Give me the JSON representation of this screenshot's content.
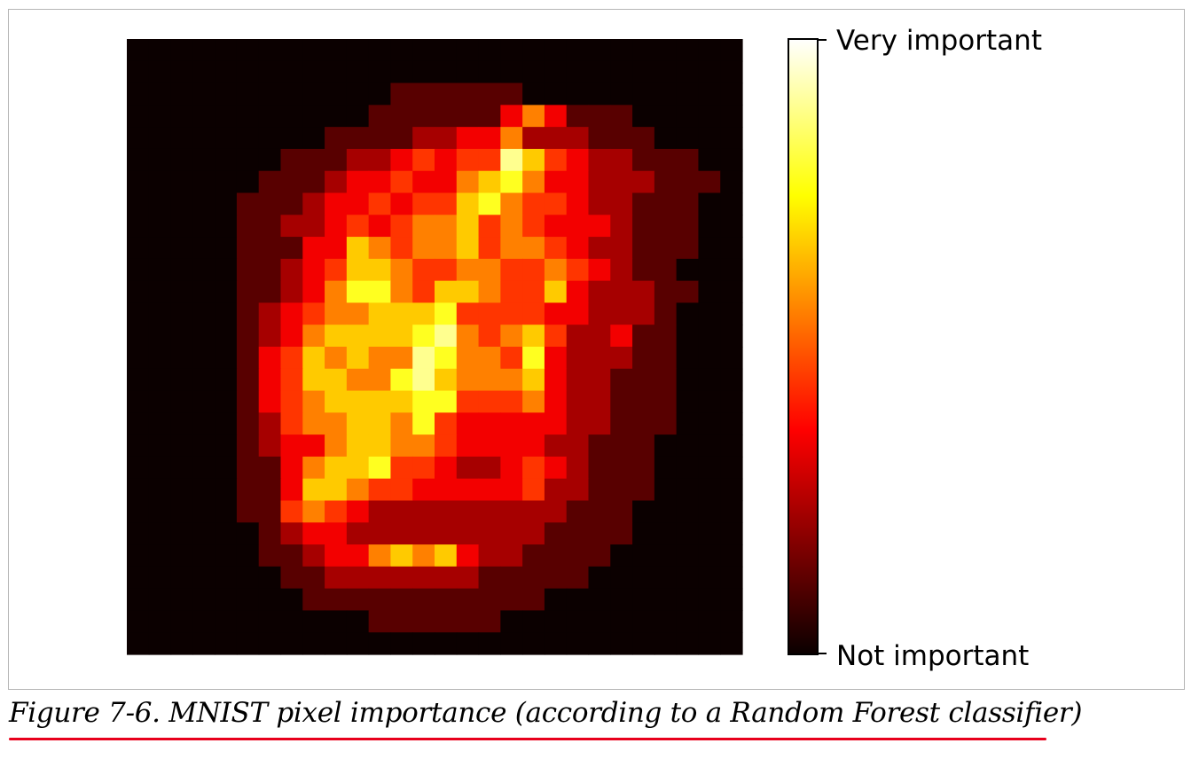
{
  "caption": {
    "text": "Figure 7-6. MNIST pixel importance (according to a Random Forest classifier)",
    "underline_color": "#e8001c"
  },
  "chart_data": {
    "type": "heatmap",
    "title": "",
    "xlabel": "",
    "ylabel": "",
    "colormap": "hot",
    "rows": 28,
    "cols": 28,
    "axes_visible": false,
    "grid": false,
    "value_range": [
      0,
      9
    ],
    "colorbar": {
      "position": "right",
      "max_label": "Very important",
      "min_label": "Not important"
    },
    "values": [
      [
        0,
        0,
        0,
        0,
        0,
        0,
        0,
        0,
        0,
        0,
        0,
        0,
        0,
        0,
        0,
        0,
        0,
        0,
        0,
        0,
        0,
        0,
        0,
        0,
        0,
        0,
        0,
        0
      ],
      [
        0,
        0,
        0,
        0,
        0,
        0,
        0,
        0,
        0,
        0,
        0,
        0,
        0,
        0,
        0,
        0,
        0,
        0,
        0,
        0,
        0,
        0,
        0,
        0,
        0,
        0,
        0,
        0
      ],
      [
        0,
        0,
        0,
        0,
        0,
        0,
        0,
        0,
        0,
        0,
        0,
        0,
        1,
        1,
        1,
        1,
        1,
        1,
        0,
        0,
        0,
        0,
        0,
        0,
        0,
        0,
        0,
        0
      ],
      [
        0,
        0,
        0,
        0,
        0,
        0,
        0,
        0,
        0,
        0,
        0,
        1,
        1,
        1,
        1,
        1,
        1,
        3,
        5,
        3,
        1,
        1,
        1,
        0,
        0,
        0,
        0,
        0
      ],
      [
        0,
        0,
        0,
        0,
        0,
        0,
        0,
        0,
        0,
        1,
        1,
        1,
        1,
        2,
        2,
        3,
        3,
        5,
        2,
        2,
        2,
        1,
        1,
        1,
        0,
        0,
        0,
        0
      ],
      [
        0,
        0,
        0,
        0,
        0,
        0,
        0,
        1,
        1,
        1,
        2,
        2,
        3,
        4,
        3,
        4,
        4,
        8,
        6,
        4,
        3,
        2,
        2,
        1,
        1,
        1,
        0,
        0
      ],
      [
        0,
        0,
        0,
        0,
        0,
        0,
        1,
        1,
        1,
        2,
        3,
        3,
        4,
        3,
        3,
        5,
        6,
        7,
        5,
        3,
        3,
        2,
        2,
        2,
        1,
        1,
        1,
        0
      ],
      [
        0,
        0,
        0,
        0,
        0,
        1,
        1,
        1,
        2,
        3,
        3,
        4,
        3,
        4,
        4,
        6,
        7,
        5,
        4,
        4,
        3,
        2,
        2,
        1,
        1,
        1,
        0,
        0
      ],
      [
        0,
        0,
        0,
        0,
        0,
        1,
        1,
        2,
        2,
        3,
        4,
        3,
        4,
        5,
        5,
        6,
        4,
        5,
        4,
        3,
        3,
        3,
        2,
        1,
        1,
        1,
        0,
        0
      ],
      [
        0,
        0,
        0,
        0,
        0,
        1,
        1,
        1,
        3,
        3,
        6,
        5,
        4,
        5,
        5,
        6,
        4,
        5,
        5,
        4,
        3,
        2,
        2,
        1,
        1,
        1,
        0,
        0
      ],
      [
        0,
        0,
        0,
        0,
        0,
        1,
        1,
        2,
        3,
        4,
        6,
        6,
        5,
        4,
        4,
        5,
        5,
        4,
        4,
        5,
        4,
        3,
        2,
        1,
        1,
        0,
        0,
        0
      ],
      [
        0,
        0,
        0,
        0,
        0,
        1,
        1,
        2,
        3,
        5,
        7,
        7,
        5,
        4,
        6,
        6,
        5,
        4,
        4,
        6,
        3,
        2,
        2,
        2,
        1,
        1,
        0,
        0
      ],
      [
        0,
        0,
        0,
        0,
        0,
        1,
        2,
        3,
        4,
        5,
        5,
        6,
        6,
        6,
        7,
        4,
        4,
        4,
        4,
        3,
        3,
        2,
        2,
        2,
        1,
        0,
        0,
        0
      ],
      [
        0,
        0,
        0,
        0,
        0,
        1,
        2,
        3,
        5,
        6,
        6,
        6,
        6,
        7,
        8,
        5,
        4,
        5,
        6,
        4,
        2,
        2,
        3,
        1,
        1,
        0,
        0,
        0
      ],
      [
        0,
        0,
        0,
        0,
        0,
        1,
        3,
        4,
        6,
        5,
        6,
        5,
        5,
        8,
        7,
        5,
        5,
        4,
        7,
        3,
        2,
        2,
        2,
        1,
        1,
        0,
        0,
        0
      ],
      [
        0,
        0,
        0,
        0,
        0,
        1,
        3,
        4,
        6,
        6,
        5,
        5,
        7,
        8,
        6,
        5,
        5,
        5,
        6,
        3,
        2,
        2,
        1,
        1,
        1,
        0,
        0,
        0
      ],
      [
        0,
        0,
        0,
        0,
        0,
        1,
        3,
        4,
        5,
        6,
        6,
        6,
        6,
        7,
        7,
        4,
        4,
        4,
        5,
        3,
        2,
        2,
        1,
        1,
        1,
        0,
        0,
        0
      ],
      [
        0,
        0,
        0,
        0,
        0,
        1,
        2,
        4,
        5,
        5,
        6,
        6,
        5,
        7,
        4,
        3,
        3,
        3,
        3,
        3,
        2,
        2,
        1,
        1,
        1,
        0,
        0,
        0
      ],
      [
        0,
        0,
        0,
        0,
        0,
        1,
        2,
        3,
        3,
        5,
        6,
        6,
        5,
        5,
        4,
        3,
        3,
        3,
        3,
        2,
        2,
        1,
        1,
        1,
        0,
        0,
        0,
        0
      ],
      [
        0,
        0,
        0,
        0,
        0,
        1,
        1,
        3,
        5,
        6,
        6,
        7,
        4,
        4,
        3,
        2,
        2,
        3,
        4,
        3,
        2,
        1,
        1,
        1,
        0,
        0,
        0,
        0
      ],
      [
        0,
        0,
        0,
        0,
        0,
        1,
        1,
        3,
        6,
        6,
        5,
        4,
        4,
        3,
        3,
        3,
        3,
        3,
        4,
        2,
        2,
        1,
        1,
        1,
        0,
        0,
        0,
        0
      ],
      [
        0,
        0,
        0,
        0,
        0,
        1,
        1,
        4,
        5,
        4,
        3,
        2,
        2,
        2,
        2,
        2,
        2,
        2,
        2,
        2,
        1,
        1,
        1,
        0,
        0,
        0,
        0,
        0
      ],
      [
        0,
        0,
        0,
        0,
        0,
        0,
        1,
        2,
        3,
        3,
        2,
        2,
        2,
        2,
        2,
        2,
        2,
        2,
        2,
        1,
        1,
        1,
        1,
        0,
        0,
        0,
        0,
        0
      ],
      [
        0,
        0,
        0,
        0,
        0,
        0,
        1,
        1,
        2,
        3,
        3,
        5,
        6,
        5,
        6,
        3,
        2,
        2,
        1,
        1,
        1,
        1,
        0,
        0,
        0,
        0,
        0,
        0
      ],
      [
        0,
        0,
        0,
        0,
        0,
        0,
        0,
        1,
        1,
        2,
        2,
        2,
        2,
        2,
        2,
        2,
        1,
        1,
        1,
        1,
        1,
        0,
        0,
        0,
        0,
        0,
        0,
        0
      ],
      [
        0,
        0,
        0,
        0,
        0,
        0,
        0,
        0,
        1,
        1,
        1,
        1,
        1,
        1,
        1,
        1,
        1,
        1,
        1,
        0,
        0,
        0,
        0,
        0,
        0,
        0,
        0,
        0
      ],
      [
        0,
        0,
        0,
        0,
        0,
        0,
        0,
        0,
        0,
        0,
        0,
        1,
        1,
        1,
        1,
        1,
        1,
        0,
        0,
        0,
        0,
        0,
        0,
        0,
        0,
        0,
        0,
        0
      ],
      [
        0,
        0,
        0,
        0,
        0,
        0,
        0,
        0,
        0,
        0,
        0,
        0,
        0,
        0,
        0,
        0,
        0,
        0,
        0,
        0,
        0,
        0,
        0,
        0,
        0,
        0,
        0,
        0
      ]
    ]
  }
}
